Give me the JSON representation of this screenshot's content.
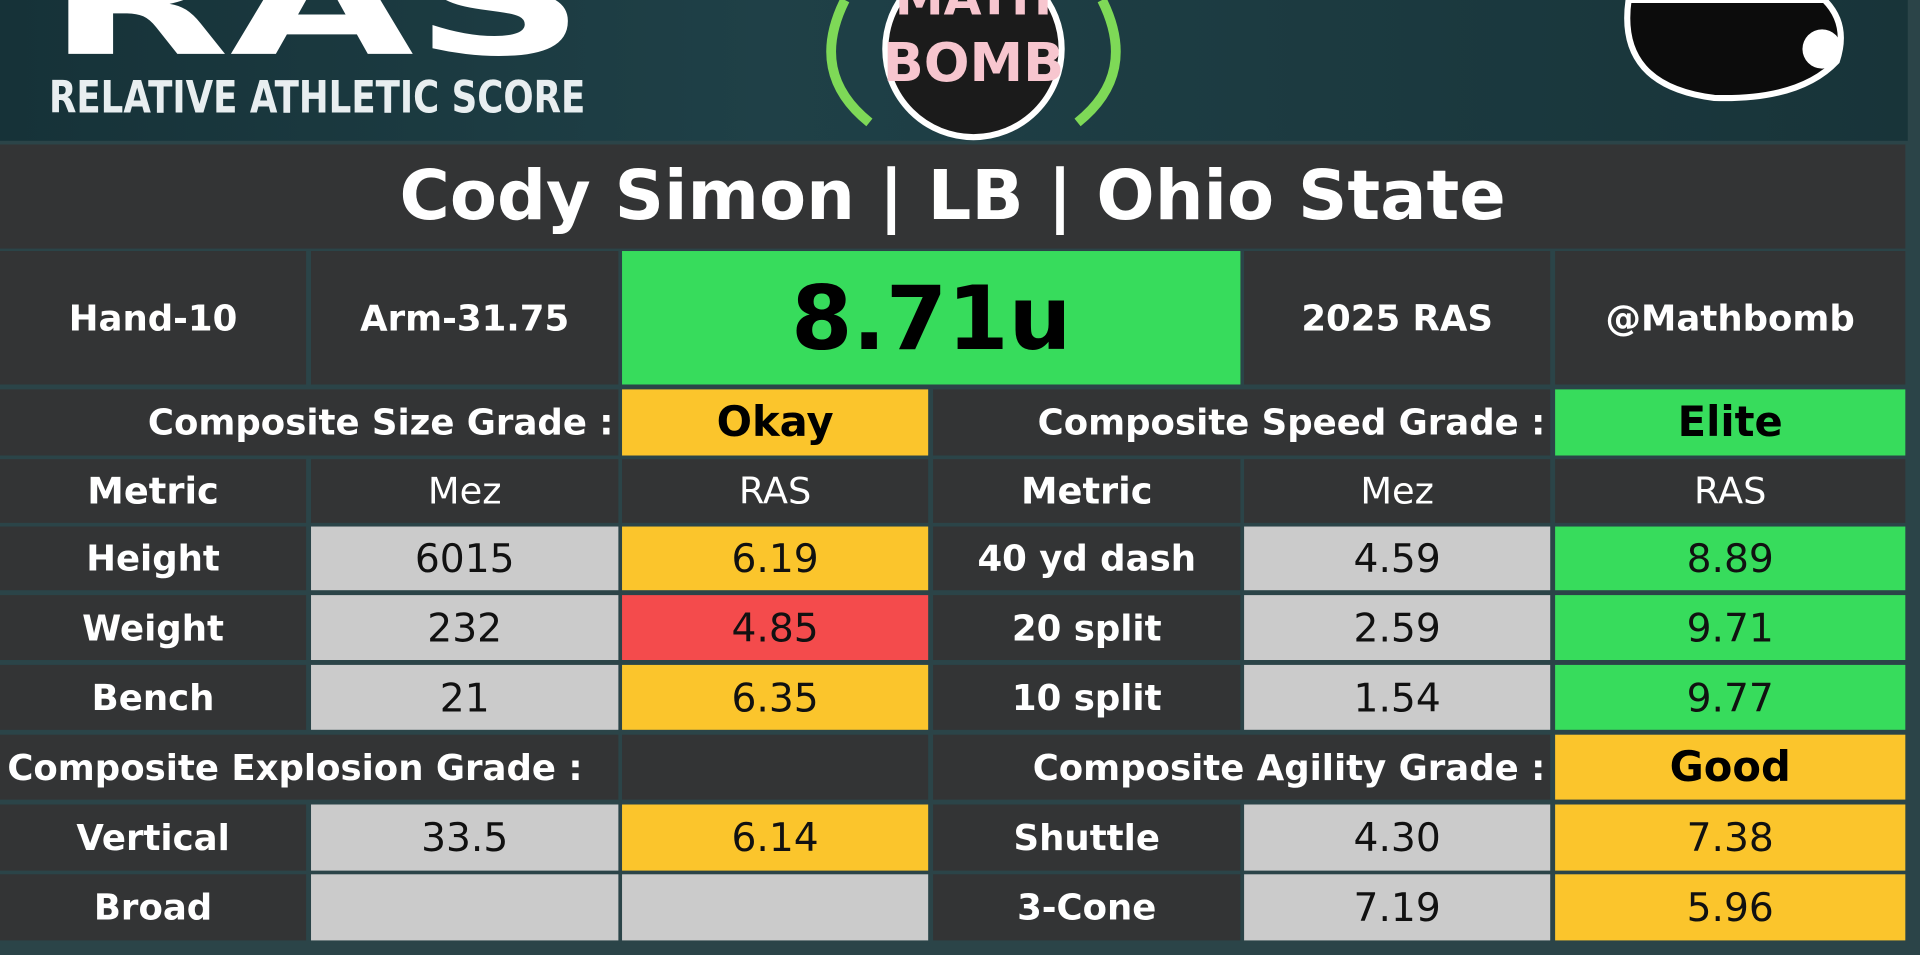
{
  "header": {
    "logo": "RAS",
    "subtitle": "RELATIVE ATHLETIC SCORE",
    "center_logo": [
      "MATH",
      "BOMB"
    ]
  },
  "title": "Cody Simon | LB | Ohio State",
  "summary": {
    "hand": "Hand-10",
    "arm": "Arm-31.75",
    "score": "8.71u",
    "year": "2025 RAS",
    "handle": "@Mathbomb"
  },
  "rows": [
    [
      "Composite Size Grade :",
      "Okay",
      "Composite Speed Grade :",
      "Elite"
    ],
    [
      "Metric",
      "Mez",
      "RAS",
      "Metric",
      "Mez",
      "RAS"
    ],
    [
      "Height",
      "6015",
      "6.19",
      "40 yd dash",
      "4.59",
      "8.89"
    ],
    [
      "Weight",
      "232",
      "4.85",
      "20 split",
      "2.59",
      "9.71"
    ],
    [
      "Bench",
      "21",
      "6.35",
      "10 split",
      "1.54",
      "9.77"
    ],
    [
      "Composite Explosion Grade :",
      "Composite Agility Grade :",
      "Good"
    ],
    [
      "Vertical",
      "33.5",
      "6.14",
      "Shuttle",
      "4.30",
      "7.38"
    ],
    [
      "Broad",
      "3-Cone",
      "7.19",
      "5.96"
    ]
  ]
}
